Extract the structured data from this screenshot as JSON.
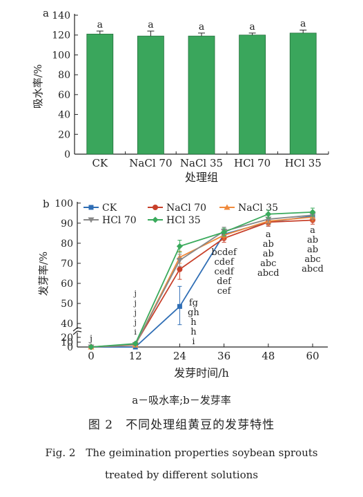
{
  "chart_data": [
    {
      "panel_label": "a",
      "type": "bar",
      "ylabel": "吸水率/%",
      "xlabel": "处理组",
      "ylim": [
        0,
        140
      ],
      "yticks": [
        "0",
        "20",
        "40",
        "60",
        "80",
        "100",
        "120",
        "140"
      ],
      "categories": [
        "CK",
        "NaCl 70",
        "NaCl 35",
        "HCl 70",
        "HCl 35"
      ],
      "values": [
        121,
        119,
        119,
        120,
        122
      ],
      "errors": [
        3,
        5,
        3,
        2,
        3
      ],
      "letters": [
        "a",
        "a",
        "a",
        "a",
        "a"
      ],
      "bar_color": "#3aa65c"
    },
    {
      "panel_label": "b",
      "type": "line",
      "ylabel": "发芽率/%",
      "xlabel": "发芽时间/h",
      "x": [
        0,
        12,
        24,
        36,
        48,
        60
      ],
      "xticks": [
        "0",
        "12",
        "24",
        "36",
        "48",
        "60"
      ],
      "yticks_upper": [
        "40",
        "50",
        "60",
        "70",
        "80",
        "90",
        "100"
      ],
      "yticks_lower": [
        "0",
        "10",
        "20"
      ],
      "axis_break": true,
      "series": [
        {
          "name": "CK",
          "color": "#2f6eb5",
          "marker": "square",
          "values": [
            0,
            0,
            48.5,
            84.5,
            90.5,
            93.5
          ],
          "errors": [
            0,
            0,
            10,
            2,
            2,
            2
          ]
        },
        {
          "name": "NaCl 70",
          "color": "#c8402a",
          "marker": "circle",
          "values": [
            0,
            6,
            67,
            82.5,
            90.5,
            91.5
          ],
          "errors": [
            0,
            1,
            5,
            2,
            2,
            2
          ]
        },
        {
          "name": "NaCl 35",
          "color": "#f08a3c",
          "marker": "triangle",
          "values": [
            0,
            4,
            73,
            84,
            91,
            93
          ],
          "errors": [
            0,
            1,
            3,
            2,
            2,
            2
          ]
        },
        {
          "name": "HCl 70",
          "color": "#888888",
          "marker": "triangle-down",
          "values": [
            0,
            5,
            71.5,
            86,
            92,
            94
          ],
          "errors": [
            0,
            1,
            3,
            2,
            2,
            2
          ]
        },
        {
          "name": "HCl 35",
          "color": "#3aaa5c",
          "marker": "diamond",
          "values": [
            0,
            7,
            78.5,
            85.5,
            94.5,
            95.5
          ],
          "errors": [
            0,
            1,
            3,
            2,
            2,
            2
          ]
        }
      ],
      "letter_groups": [
        {
          "x": 0,
          "letters": [
            "j"
          ]
        },
        {
          "x": 12,
          "letters": [
            "j",
            "j",
            "j",
            "j",
            "i"
          ]
        },
        {
          "x": 24,
          "letters": [
            "fg",
            "gh",
            "h",
            "h",
            "i"
          ]
        },
        {
          "x": 36,
          "letters": [
            "bcdef",
            "cdef",
            "cedf",
            "def",
            "cef"
          ]
        },
        {
          "x": 48,
          "letters": [
            "a",
            "ab",
            "ab",
            "abc",
            "abcd"
          ]
        },
        {
          "x": 60,
          "letters": [
            "a",
            "ab",
            "ab",
            "abc",
            "abcd"
          ]
        }
      ]
    }
  ],
  "caption": {
    "sub": "a－吸水率;b－发芽率",
    "cn": "图 2　不同处理组黄豆的发芽特性",
    "en_line1": "Fig. 2　The geimination properties soybean sprouts",
    "en_line2": "treated by different solutions"
  }
}
